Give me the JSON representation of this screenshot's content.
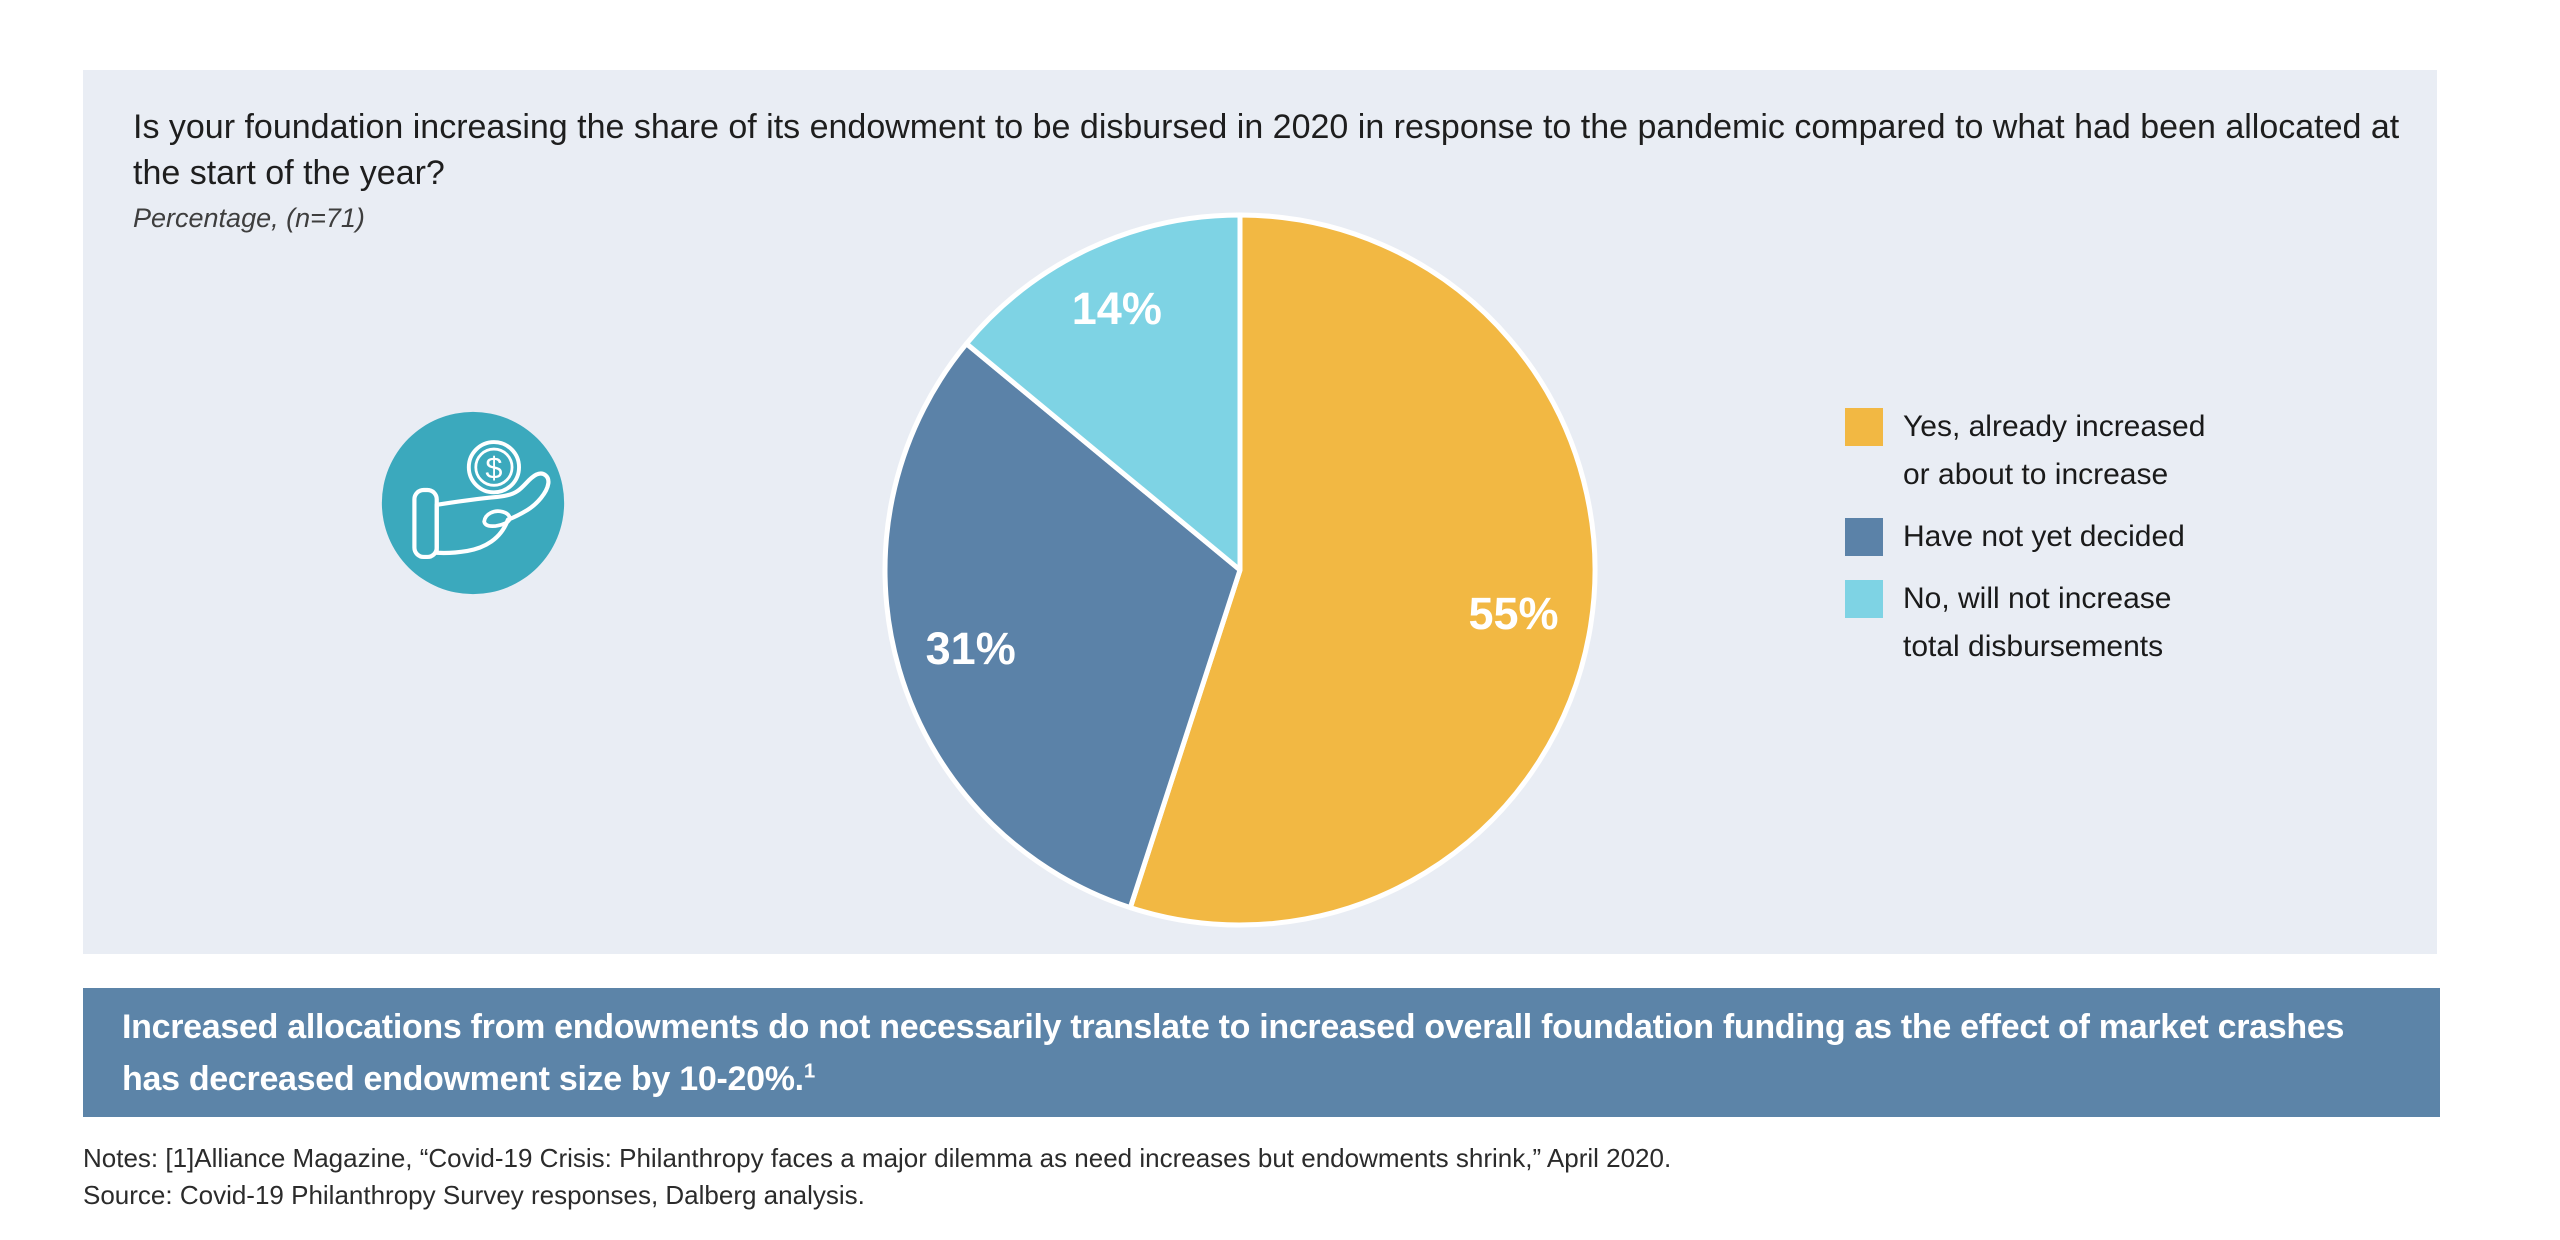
{
  "panel": {
    "background": "#E9EDF4"
  },
  "chart_data": {
    "type": "pie",
    "title": "Is your foundation increasing the share of its endowment to be disbursed in 2020 in response to the pandemic compared to what had been allocated at the start of the year?",
    "subtitle": "Percentage, (n=71)",
    "n": 71,
    "unit": "%",
    "start_angle_deg": 0,
    "direction": "clockwise",
    "legend_position": "right",
    "slice_border_color": "#FFFFFF",
    "slices": [
      {
        "label": "Yes, already increased or about to increase",
        "legend_lines": [
          "Yes, already increased",
          "or about to increase"
        ],
        "value": 55,
        "data_label": "55%",
        "color": "#F2B843"
      },
      {
        "label": "Have not yet decided",
        "legend_lines": [
          "Have not yet decided"
        ],
        "value": 31,
        "data_label": "31%",
        "color": "#5B82A8"
      },
      {
        "label": "No, will not increase total disbursements",
        "legend_lines": [
          "No, will not increase",
          "total disbursements"
        ],
        "value": 14,
        "data_label": "14%",
        "color": "#7ED3E4"
      }
    ]
  },
  "icon": {
    "name": "hand-holding-coin",
    "background": "#3BA9BD",
    "line_color": "#FFFFFF",
    "dollar_symbol": "$"
  },
  "banner": {
    "text": "Increased allocations from endowments do not necessarily translate to increased overall foundation funding as the effect of market crashes has decreased endowment size by 10-20%.",
    "superscript": "1",
    "background": "#5C84A8",
    "text_color": "#FFFFFF"
  },
  "footer": {
    "notes": "Notes: [1]Alliance Magazine, “Covid-19 Crisis: Philanthropy faces a major dilemma as need increases but endowments shrink,” April 2020.",
    "source": "Source: Covid-19 Philanthropy Survey responses, Dalberg analysis."
  }
}
